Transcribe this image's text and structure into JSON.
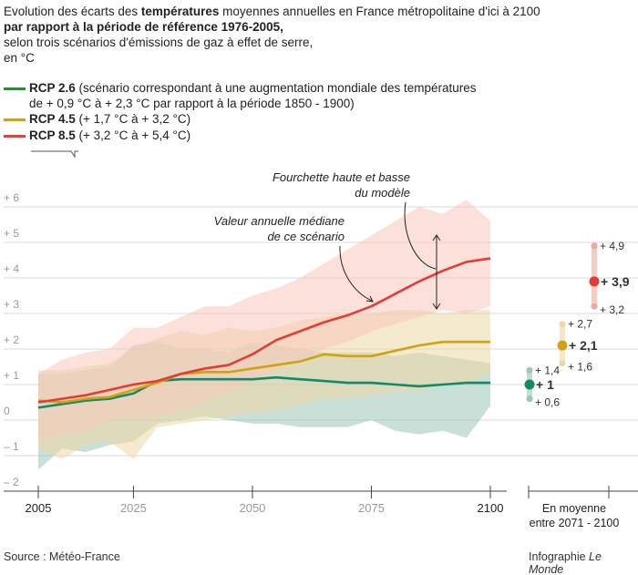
{
  "header": {
    "title_pre": "Evolution des écarts des ",
    "title_bold": "températures",
    "title_post": " moyennes annuelles en France métropolitaine d'ici à 2100",
    "title_line2": "par rapport à la période de référence 1976-2005,",
    "subtitle": "selon trois scénarios d'émissions de gaz à effet de serre,",
    "unit": "en °C"
  },
  "legend": [
    {
      "name": "RCP 2.6",
      "desc": " (scénario correspondant à une augmentation mondiale des températures",
      "desc2": "de + 0,9 °C à + 2,3 °C par rapport à la période 1850 - 1900)",
      "color": "#2e8b3a"
    },
    {
      "name": "RCP 4.5",
      "desc": " (+ 1,7 °C à + 3,2 °C)",
      "desc2": "",
      "color": "#d4a017"
    },
    {
      "name": "RCP 8.5",
      "desc": " (+ 3,2 °C à + 5,4 °C)",
      "desc2": "",
      "color": "#e8413c"
    }
  ],
  "annotations": {
    "range": [
      "Fourchette haute et basse",
      "du modèle"
    ],
    "median": [
      "Valeur annuelle médiane",
      "de ce scénario"
    ]
  },
  "chart_data": [
    {
      "type": "line",
      "xlabel": "",
      "ylabel": "",
      "xlim": [
        2005,
        2100
      ],
      "ylim": [
        -2,
        6
      ],
      "xticks": [
        2005,
        2025,
        2050,
        2075,
        2100
      ],
      "yticks": [
        {
          "v": 6,
          "label": "+ 6"
        },
        {
          "v": 5,
          "label": "+ 5"
        },
        {
          "v": 4,
          "label": "+ 4"
        },
        {
          "v": 3,
          "label": "+ 3"
        },
        {
          "v": 2,
          "label": "+ 2"
        },
        {
          "v": 1,
          "label": "+ 1"
        },
        {
          "v": 0,
          "label": "0"
        },
        {
          "v": -1,
          "label": "– 1"
        },
        {
          "v": -2,
          "label": "– 2"
        }
      ],
      "grid": true,
      "x": [
        2005,
        2010,
        2015,
        2020,
        2025,
        2030,
        2035,
        2040,
        2045,
        2050,
        2055,
        2060,
        2065,
        2070,
        2075,
        2080,
        2085,
        2090,
        2095,
        2100
      ],
      "series": [
        {
          "name": "RCP 2.6",
          "color": "#0f8a6a",
          "band_color": "#9cc6b8",
          "median": [
            0.35,
            0.45,
            0.55,
            0.6,
            0.75,
            1.1,
            1.15,
            1.15,
            1.15,
            1.15,
            1.2,
            1.15,
            1.1,
            1.05,
            1.05,
            1.0,
            0.95,
            1.0,
            1.05,
            1.05
          ],
          "low": [
            -1.4,
            -0.8,
            -0.9,
            -0.7,
            -0.6,
            -0.1,
            0.0,
            0.1,
            0.0,
            -0.1,
            -0.1,
            -0.2,
            -0.2,
            -0.2,
            0.0,
            -0.3,
            -0.4,
            -0.3,
            -0.5,
            0.4
          ],
          "high": [
            1.3,
            1.3,
            1.4,
            1.5,
            2.1,
            2.2,
            2.0,
            2.0,
            1.9,
            2.2,
            2.1,
            2.0,
            1.9,
            1.9,
            1.9,
            1.8,
            1.9,
            1.8,
            1.7,
            1.6
          ]
        },
        {
          "name": "RCP 4.5",
          "color": "#d1a20e",
          "band_color": "#ecd7a6",
          "median": [
            0.55,
            0.5,
            0.6,
            0.65,
            0.85,
            1.05,
            1.3,
            1.35,
            1.35,
            1.45,
            1.55,
            1.65,
            1.85,
            1.8,
            1.8,
            1.95,
            2.1,
            2.2,
            2.2,
            2.2
          ],
          "low": [
            -0.8,
            -1.1,
            -0.7,
            -0.6,
            -1.1,
            -0.2,
            -0.1,
            0.0,
            0.1,
            0.2,
            0.3,
            0.4,
            0.6,
            0.6,
            0.7,
            0.8,
            0.8,
            1.0,
            1.0,
            1.3
          ],
          "high": [
            1.4,
            1.4,
            1.5,
            1.6,
            2.0,
            2.3,
            2.5,
            2.4,
            2.6,
            2.5,
            2.6,
            2.8,
            2.9,
            3.0,
            3.0,
            3.1,
            3.1,
            3.0,
            3.1,
            3.1
          ]
        },
        {
          "name": "RCP 8.5",
          "color": "#e33c36",
          "band_color": "#f8c9bb",
          "median": [
            0.5,
            0.6,
            0.7,
            0.85,
            1.0,
            1.1,
            1.3,
            1.45,
            1.55,
            1.85,
            2.25,
            2.5,
            2.75,
            2.95,
            3.2,
            3.55,
            3.9,
            4.2,
            4.45,
            4.55
          ],
          "low": [
            -0.6,
            -0.4,
            -0.3,
            0.0,
            0.1,
            0.1,
            0.3,
            0.5,
            0.8,
            1.1,
            1.4,
            1.7,
            2.0,
            2.2,
            2.5,
            2.7,
            2.9,
            3.1,
            3.0,
            3.2
          ],
          "high": [
            1.3,
            1.7,
            1.9,
            2.0,
            2.6,
            2.6,
            2.9,
            3.2,
            3.2,
            3.5,
            3.7,
            4.0,
            4.4,
            4.8,
            5.2,
            5.6,
            6.0,
            5.8,
            6.2,
            5.6
          ]
        }
      ]
    },
    {
      "type": "scatter",
      "title": "En moyenne entre 2071 - 2100",
      "caption": [
        "En moyenne",
        "entre 2071 - 2100"
      ],
      "points": [
        {
          "scenario": "RCP 2.6",
          "mean": 1,
          "low": 0.6,
          "high": 1.4,
          "mean_label": "+ 1",
          "low_label": "+ 0,6",
          "high_label": "+ 1,4",
          "color": "#0f8a6a",
          "light": "#9cc6b8"
        },
        {
          "scenario": "RCP 4.5",
          "mean": 2.1,
          "low": 1.6,
          "high": 2.7,
          "mean_label": "+ 2,1",
          "low_label": "+ 1,6",
          "high_label": "+ 2,7",
          "color": "#d1a20e",
          "light": "#ecd7a6"
        },
        {
          "scenario": "RCP 8.5",
          "mean": 3.9,
          "low": 3.2,
          "high": 4.9,
          "mean_label": "+ 3,9",
          "low_label": "+ 3,2",
          "high_label": "+ 4,9",
          "color": "#e33c36",
          "light": "#f3a89b"
        }
      ]
    }
  ],
  "footer": {
    "source": "Source : Météo-France",
    "credit_pre": "Infographie ",
    "credit_brand": "Le Monde"
  }
}
